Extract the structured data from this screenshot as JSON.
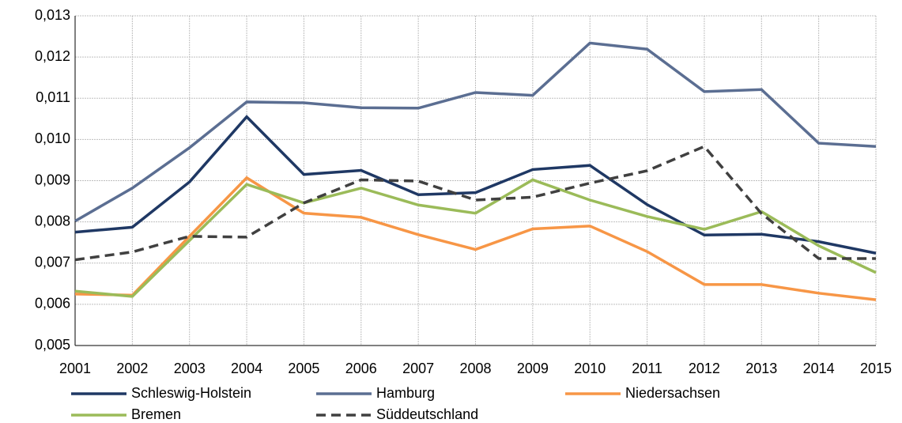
{
  "chart_data": {
    "type": "line",
    "x": [
      2001,
      2002,
      2003,
      2004,
      2005,
      2006,
      2007,
      2008,
      2009,
      2010,
      2011,
      2012,
      2013,
      2014,
      2015
    ],
    "xlim": [
      2001,
      2015
    ],
    "xticks": [
      2001,
      2002,
      2003,
      2004,
      2005,
      2006,
      2007,
      2008,
      2009,
      2010,
      2011,
      2012,
      2013,
      2014,
      2015
    ],
    "ylim": [
      0.005,
      0.013
    ],
    "yticks": [
      {
        "value": 0.005,
        "label": "0,005"
      },
      {
        "value": 0.006,
        "label": "0,006"
      },
      {
        "value": 0.007,
        "label": "0,007"
      },
      {
        "value": 0.008,
        "label": "0,008"
      },
      {
        "value": 0.009,
        "label": "0,009"
      },
      {
        "value": 0.01,
        "label": "0,010"
      },
      {
        "value": 0.011,
        "label": "0,011"
      },
      {
        "value": 0.012,
        "label": "0,012"
      },
      {
        "value": 0.013,
        "label": "0,013"
      }
    ],
    "grid": true,
    "series": [
      {
        "name": "Schleswig-Holstein",
        "color": "#1f3864",
        "linestyle": "solid",
        "values": [
          0.00775,
          0.00787,
          0.00897,
          0.01055,
          0.00915,
          0.00925,
          0.00866,
          0.00871,
          0.00927,
          0.00937,
          0.00842,
          0.00768,
          0.0077,
          0.00752,
          0.00724
        ]
      },
      {
        "name": "Hamburg",
        "color": "#5b6e92",
        "linestyle": "solid",
        "values": [
          0.00802,
          0.00882,
          0.0098,
          0.01091,
          0.01089,
          0.01077,
          0.01076,
          0.01114,
          0.01107,
          0.01234,
          0.01219,
          0.01116,
          0.01121,
          0.00991,
          0.00983
        ]
      },
      {
        "name": "Niedersachsen",
        "color": "#f79646",
        "linestyle": "solid",
        "values": [
          0.00625,
          0.00622,
          0.00765,
          0.00907,
          0.00821,
          0.00811,
          0.00769,
          0.00733,
          0.00783,
          0.0079,
          0.00728,
          0.00648,
          0.00648,
          0.00627,
          0.00611
        ]
      },
      {
        "name": "Bremen",
        "color": "#9bbb59",
        "linestyle": "solid",
        "values": [
          0.00632,
          0.00619,
          0.00755,
          0.00891,
          0.00846,
          0.00882,
          0.00841,
          0.00821,
          0.00902,
          0.00853,
          0.00813,
          0.00782,
          0.00825,
          0.00742,
          0.00677
        ]
      },
      {
        "name": "Süddeutschland",
        "color": "#404040",
        "linestyle": "dashed",
        "values": [
          0.00708,
          0.00727,
          0.00765,
          0.00763,
          0.00846,
          0.00902,
          0.00899,
          0.00853,
          0.0086,
          0.00894,
          0.00924,
          0.00983,
          0.0082,
          0.00711,
          0.00711
        ]
      }
    ]
  }
}
